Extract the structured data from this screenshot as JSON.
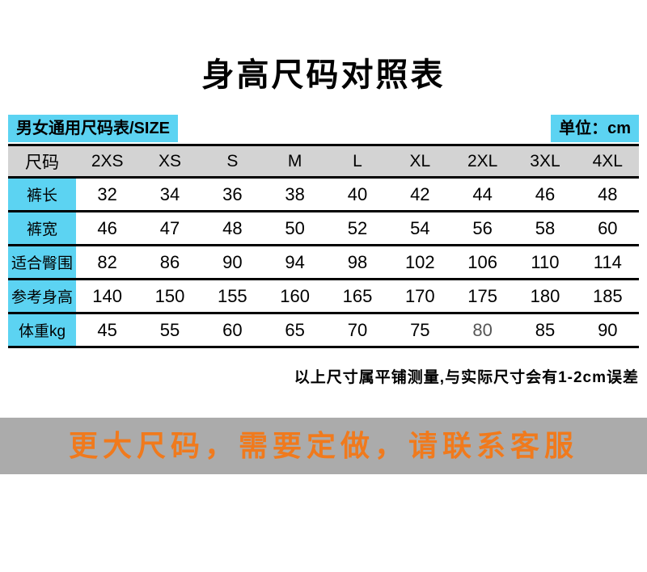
{
  "page": {
    "title": "身高尺码对照表"
  },
  "colors": {
    "accent_cyan": "#5cd3f2",
    "header_gray": "#d3d3d3",
    "banner_gray": "#ababab",
    "banner_orange": "#f07a1d",
    "border_black": "#000000",
    "muted_value": "#555555"
  },
  "table": {
    "top_left_label": "男女通用尺码表/SIZE",
    "top_right_label": "单位：cm",
    "header": [
      "尺码",
      "2XS",
      "XS",
      "S",
      "M",
      "L",
      "XL",
      "2XL",
      "3XL",
      "4XL"
    ],
    "rows": [
      {
        "label": "裤长",
        "values": [
          "32",
          "34",
          "36",
          "38",
          "40",
          "42",
          "44",
          "46",
          "48"
        ]
      },
      {
        "label": "裤宽",
        "values": [
          "46",
          "47",
          "48",
          "50",
          "52",
          "54",
          "56",
          "58",
          "60"
        ]
      },
      {
        "label": "适合臀围",
        "values": [
          "82",
          "86",
          "90",
          "94",
          "98",
          "102",
          "106",
          "110",
          "114"
        ]
      },
      {
        "label": "参考身高",
        "values": [
          "140",
          "150",
          "155",
          "160",
          "165",
          "170",
          "175",
          "180",
          "185"
        ]
      },
      {
        "label": "体重kg",
        "values": [
          "45",
          "55",
          "60",
          "65",
          "70",
          "75",
          "80",
          "85",
          "90"
        ]
      }
    ],
    "muted_cells": [
      {
        "row": 4,
        "col": 6
      }
    ]
  },
  "note": "以上尺寸属平铺测量,与实际尺寸会有1-2cm误差",
  "banner": {
    "text": "更大尺码，需要定做，请联系客服"
  }
}
